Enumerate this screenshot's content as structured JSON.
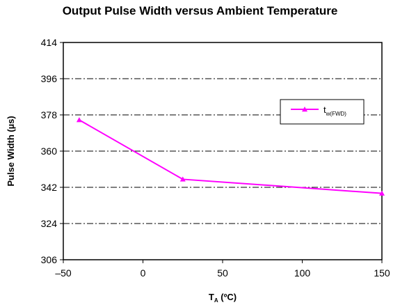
{
  "chart_data": {
    "type": "line",
    "title": "Output Pulse Width versus Ambient Temperature",
    "xlabel": {
      "main": "T",
      "sub": "A",
      "unit": " (ºC)"
    },
    "ylabel": "Pulse Width (µs)",
    "xlim": [
      -50,
      150
    ],
    "ylim": [
      306,
      414
    ],
    "xticks": [
      -50,
      0,
      50,
      100,
      150
    ],
    "xtick_labels": [
      "–50",
      "0",
      "50",
      "100",
      "150"
    ],
    "yticks": [
      306,
      324,
      342,
      360,
      378,
      396,
      414
    ],
    "ytick_labels": [
      "306",
      "324",
      "342",
      "360",
      "378",
      "396",
      "414"
    ],
    "grid": "horizontal dash-dot",
    "legend_position": "right",
    "series": [
      {
        "name": {
          "main": "t",
          "sub": "w(FWD)"
        },
        "color": "#ff00ff",
        "marker": "triangle",
        "x": [
          -40,
          25,
          150
        ],
        "y": [
          375.5,
          346,
          339
        ]
      }
    ]
  }
}
